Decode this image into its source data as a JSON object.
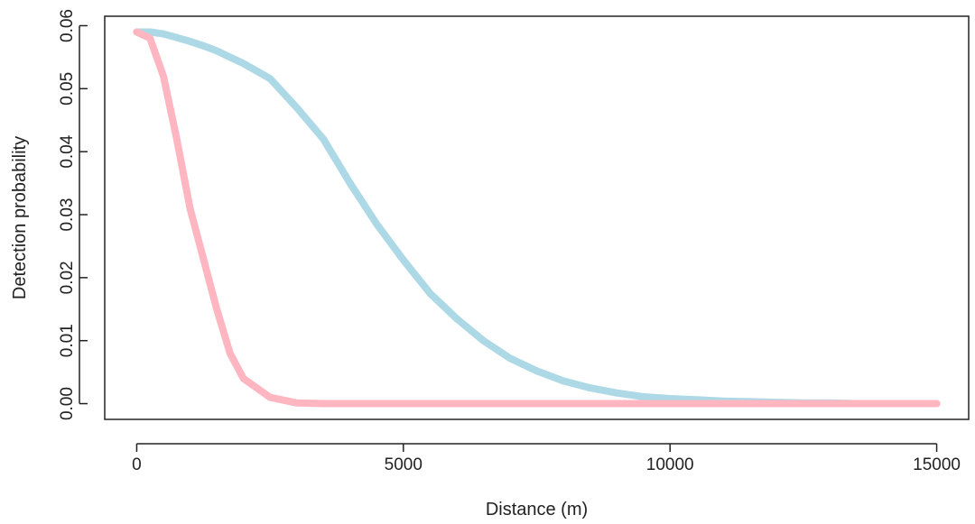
{
  "chart_data": {
    "type": "line",
    "title": "",
    "xlabel": "Distance (m)",
    "ylabel": "Detection probability",
    "xlim": [
      -600,
      15600
    ],
    "ylim": [
      -0.0025,
      0.0615
    ],
    "grid": false,
    "legend": "none",
    "x_ticks": [
      0,
      5000,
      10000,
      15000
    ],
    "x_tick_labels": [
      "0",
      "5000",
      "10000",
      "15000"
    ],
    "y_ticks": [
      0.0,
      0.01,
      0.02,
      0.03,
      0.04,
      0.05,
      0.06
    ],
    "y_tick_labels": [
      "0.00",
      "0.01",
      "0.02",
      "0.03",
      "0.04",
      "0.05",
      "0.06"
    ],
    "x": [
      0,
      250,
      500,
      750,
      1000,
      1250,
      1500,
      1750,
      2000,
      2500,
      3000,
      3500,
      4000,
      4500,
      5000,
      5500,
      6000,
      6500,
      7000,
      7500,
      8000,
      8500,
      9000,
      9500,
      10000,
      10500,
      11000,
      11500,
      12000,
      12500,
      13000,
      13500,
      14000,
      14500,
      15000
    ],
    "series": [
      {
        "color": "#add8e6",
        "values": [
          0.059,
          0.059,
          0.0587,
          0.0581,
          0.0575,
          0.0568,
          0.056,
          0.055,
          0.054,
          0.0516,
          0.047,
          0.042,
          0.035,
          0.0285,
          0.0228,
          0.0175,
          0.0135,
          0.01,
          0.0072,
          0.0052,
          0.0036,
          0.0025,
          0.0017,
          0.0011,
          0.0008,
          0.0006,
          0.0004,
          0.0003,
          0.0002,
          0.0001,
          0.0001,
          0.0,
          0.0,
          0.0,
          0.0
        ]
      },
      {
        "color": "#ffb6c1",
        "values": [
          0.059,
          0.058,
          0.052,
          0.042,
          0.031,
          0.023,
          0.015,
          0.008,
          0.004,
          0.001,
          0.0001,
          0.0,
          0.0,
          0.0,
          0.0,
          0.0,
          0.0,
          0.0,
          0.0,
          0.0,
          0.0,
          0.0,
          0.0,
          0.0,
          0.0,
          0.0,
          0.0,
          0.0,
          0.0,
          0.0,
          0.0,
          0.0,
          0.0,
          0.0,
          0.0
        ]
      }
    ]
  }
}
